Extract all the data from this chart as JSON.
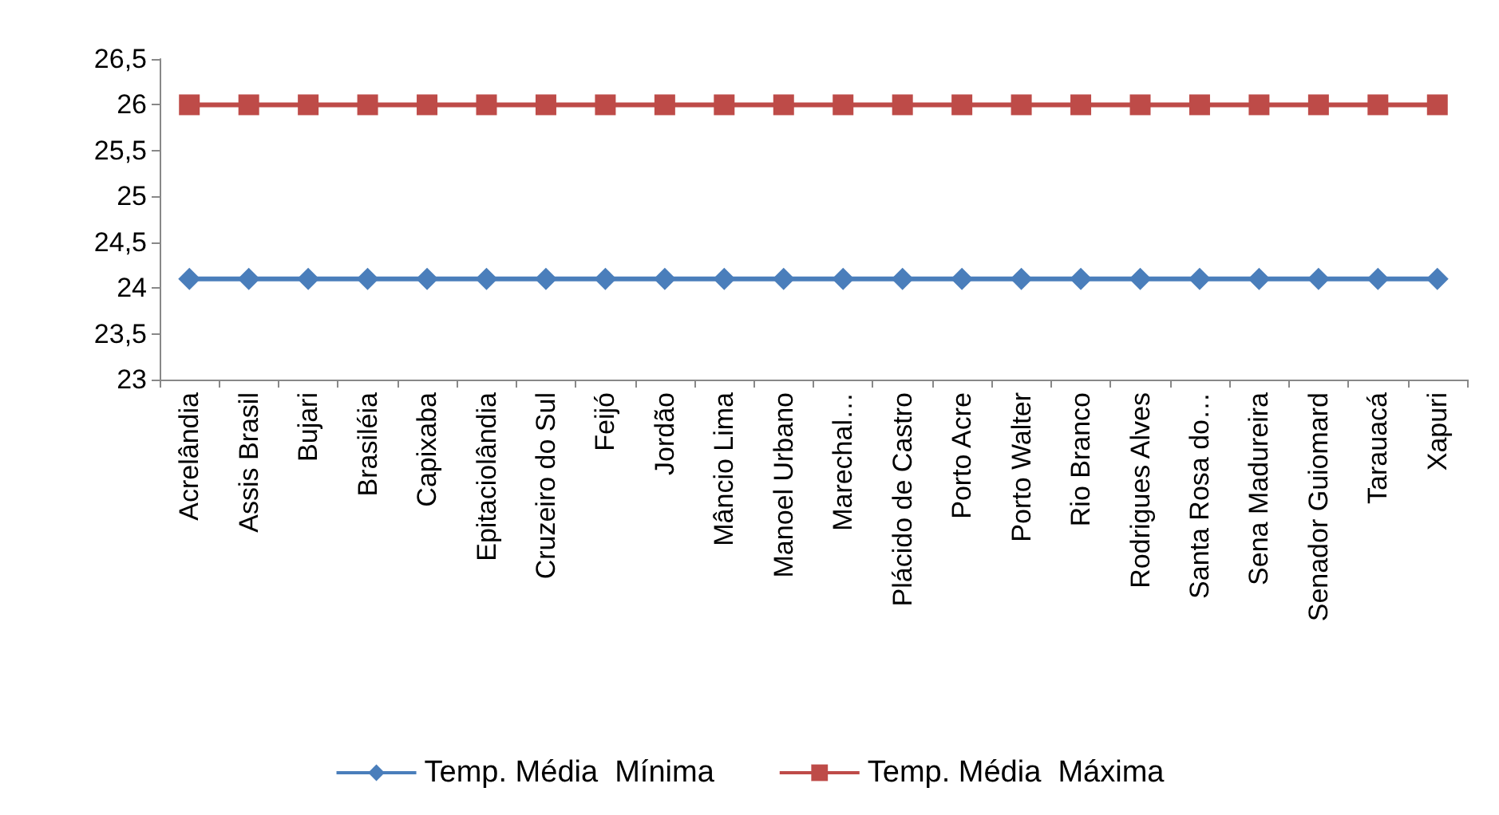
{
  "chart_data": {
    "type": "line",
    "categories": [
      "Acrelândia",
      "Assis Brasil",
      "Bujari",
      "Brasiléia",
      "Capixaba",
      "Epitaciolândia",
      "Cruzeiro do Sul",
      "Feijó",
      "Jordão",
      "Mâncio Lima",
      "Manoel Urbano",
      "Marechal…",
      "Plácido de Castro",
      "Porto Acre",
      "Porto Walter",
      "Rio Branco",
      "Rodrigues Alves",
      "Santa Rosa do…",
      "Sena Madureira",
      "Senador Guiomard",
      "Tarauacá",
      "Xapuri"
    ],
    "series": [
      {
        "name": "Temp. Média  Mínima",
        "color": "#4a7ebb",
        "marker": "diamond",
        "values": [
          24.1,
          24.1,
          24.1,
          24.1,
          24.1,
          24.1,
          24.1,
          24.1,
          24.1,
          24.1,
          24.1,
          24.1,
          24.1,
          24.1,
          24.1,
          24.1,
          24.1,
          24.1,
          24.1,
          24.1,
          24.1,
          24.1
        ]
      },
      {
        "name": "Temp. Média  Máxima",
        "color": "#be4b48",
        "marker": "square",
        "values": [
          26,
          26,
          26,
          26,
          26,
          26,
          26,
          26,
          26,
          26,
          26,
          26,
          26,
          26,
          26,
          26,
          26,
          26,
          26,
          26,
          26,
          26
        ]
      }
    ],
    "ylim": [
      23,
      26.5
    ],
    "yticks": [
      23,
      {
        "value": 23.5,
        "label": "23,5"
      },
      24,
      {
        "value": 24.5,
        "label": "24,5"
      },
      25,
      {
        "value": 25.5,
        "label": "25,5"
      },
      26,
      {
        "value": 26.5,
        "label": "26,5"
      }
    ],
    "grid": false,
    "legend": "bottom",
    "line_style": "solid"
  }
}
